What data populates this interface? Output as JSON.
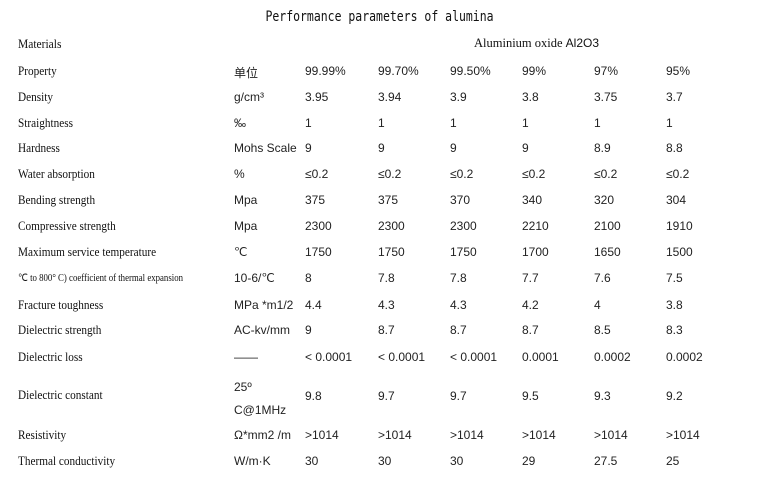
{
  "title": "Performance parameters of alumina",
  "materials": {
    "label": "Materials",
    "value_name": "Aluminium oxide",
    "value_formula": "Al2O3"
  },
  "rows": [
    {
      "property": "Property",
      "unit": "单位",
      "values": [
        "99.99%",
        "99.70%",
        "99.50%",
        "99%",
        "97%",
        "95%"
      ]
    },
    {
      "property": "Density",
      "unit": "g/cm³",
      "values": [
        "3.95",
        "3.94",
        "3.9",
        "3.8",
        "3.75",
        "3.7"
      ]
    },
    {
      "property": "Straightness",
      "unit": "‰",
      "values": [
        "1",
        "1",
        "1",
        "1",
        "1",
        "1"
      ]
    },
    {
      "property": "Hardness",
      "unit": "Mohs Scale",
      "values": [
        "9",
        "9",
        "9",
        "9",
        "8.9",
        "8.8"
      ]
    },
    {
      "property": "Water absorption",
      "unit": "%",
      "values": [
        "≤0.2",
        "≤0.2",
        "≤0.2",
        "≤0.2",
        "≤0.2",
        "≤0.2"
      ]
    },
    {
      "property": "Bending strength",
      "unit": "Mpa",
      "values": [
        "375",
        "375",
        "370",
        "340",
        "320",
        "304"
      ]
    },
    {
      "property": "Compressive strength",
      "unit": "Mpa",
      "values": [
        "2300",
        "2300",
        "2300",
        "2210",
        "2100",
        "1910"
      ]
    },
    {
      "property": "Maximum service temperature",
      "unit": "℃",
      "values": [
        "1750",
        "1750",
        "1750",
        "1700",
        "1650",
        "1500"
      ]
    },
    {
      "property": "℃ to 800° C) coefficient of thermal expansion",
      "unit": "10-6/℃",
      "values": [
        "8",
        "7.8",
        "7.8",
        "7.7",
        "7.6",
        "7.5"
      ]
    },
    {
      "property": "Fracture toughness",
      "unit": "MPa *m1/2",
      "values": [
        "4.4",
        "4.3",
        "4.3",
        "4.2",
        "4",
        "3.8"
      ]
    },
    {
      "property": "Dielectric strength",
      "unit": "AC-kv/mm",
      "values": [
        "9",
        "8.7",
        "8.7",
        "8.7",
        "8.5",
        "8.3"
      ]
    },
    {
      "property": "Dielectric loss",
      "unit": "——",
      "values": [
        "< 0.0001",
        "< 0.0001",
        "< 0.0001",
        "0.0001",
        "0.0002",
        "0.0002"
      ]
    },
    {
      "property": "Dielectric constant",
      "unit_line1": "25º",
      "unit_line2": "C@1MHz",
      "values": [
        "9.8",
        "9.7",
        "9.7",
        "9.5",
        "9.3",
        "9.2"
      ]
    },
    {
      "property": "Resistivity",
      "unit": "Ω*mm2 /m",
      "values": [
        ">1014",
        ">1014",
        ">1014",
        ">1014",
        ">1014",
        ">1014"
      ]
    },
    {
      "property": "Thermal conductivity",
      "unit": "W/m·K",
      "values": [
        "30",
        "30",
        "30",
        "29",
        "27.5",
        "25"
      ]
    }
  ]
}
